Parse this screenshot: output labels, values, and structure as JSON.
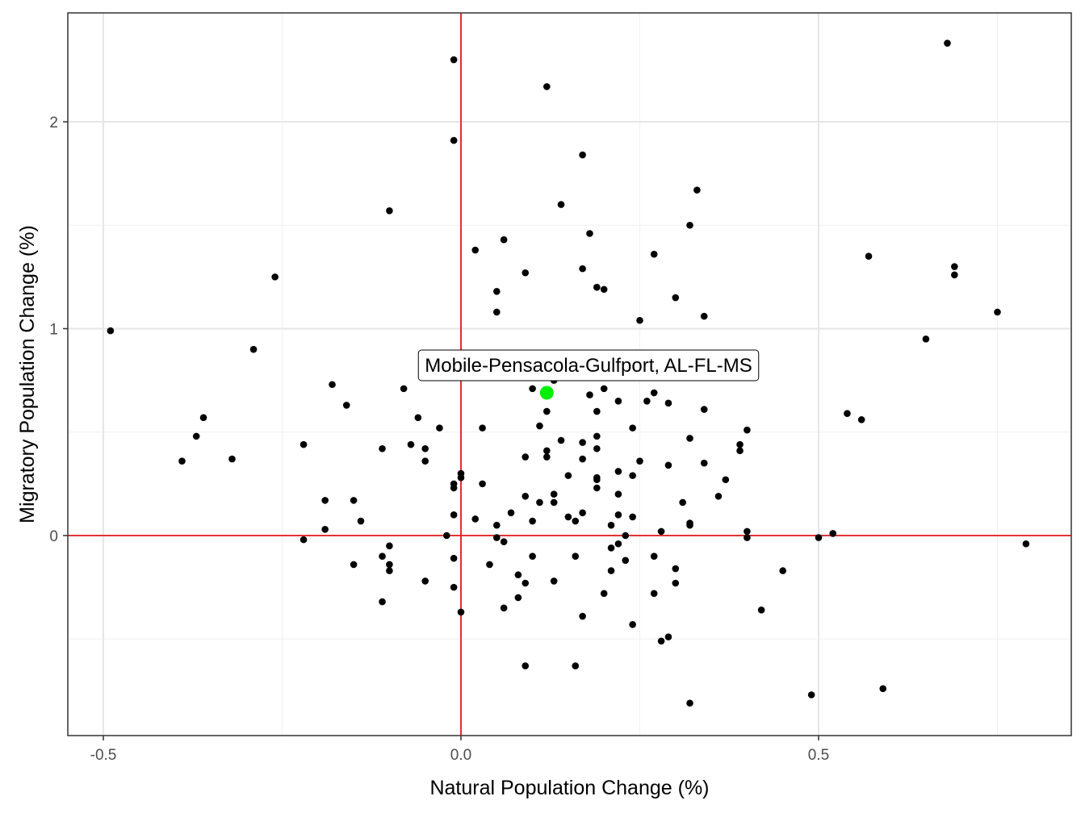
{
  "chart_data": {
    "type": "scatter",
    "title": "",
    "xlabel": "Natural Population Change (%)",
    "ylabel": "Migratory Population Change (%)",
    "xlim": [
      -0.5,
      0.8
    ],
    "ylim": [
      -0.9,
      2.4
    ],
    "x_ticks": [
      -0.5,
      0.0,
      0.5
    ],
    "x_tick_labels": [
      "-0.5",
      "0.0",
      "0.5"
    ],
    "y_ticks": [
      0,
      1,
      2
    ],
    "y_tick_labels": [
      "0",
      "1",
      "2"
    ],
    "x_minor": [
      -0.25,
      0.25,
      0.75
    ],
    "y_minor": [
      -0.5,
      0.5,
      1.5
    ],
    "grid": true,
    "reference_lines": {
      "x": 0,
      "y": 0,
      "color": "#e31a1c"
    },
    "point_color": "#000000",
    "highlight_color": "#00ee00",
    "highlight": {
      "label": "Mobile-Pensacola-Gulfport, AL-FL-MS",
      "x": 0.12,
      "y": 0.69
    },
    "points": [
      [
        -0.49,
        0.99
      ],
      [
        -0.39,
        0.36
      ],
      [
        -0.37,
        0.48
      ],
      [
        -0.36,
        0.57
      ],
      [
        -0.32,
        0.37
      ],
      [
        -0.29,
        0.9
      ],
      [
        -0.26,
        1.25
      ],
      [
        -0.22,
        0.44
      ],
      [
        -0.22,
        -0.02
      ],
      [
        -0.19,
        0.17
      ],
      [
        -0.19,
        0.03
      ],
      [
        -0.18,
        0.73
      ],
      [
        -0.16,
        0.63
      ],
      [
        -0.15,
        0.17
      ],
      [
        -0.15,
        -0.14
      ],
      [
        -0.14,
        0.07
      ],
      [
        -0.11,
        0.42
      ],
      [
        -0.11,
        -0.1
      ],
      [
        -0.11,
        -0.32
      ],
      [
        -0.1,
        1.57
      ],
      [
        -0.1,
        -0.05
      ],
      [
        -0.1,
        -0.14
      ],
      [
        -0.1,
        -0.17
      ],
      [
        -0.08,
        0.71
      ],
      [
        -0.07,
        0.44
      ],
      [
        -0.06,
        0.57
      ],
      [
        -0.05,
        0.42
      ],
      [
        -0.05,
        0.36
      ],
      [
        -0.05,
        -0.22
      ],
      [
        -0.03,
        0.52
      ],
      [
        -0.02,
        0.0
      ],
      [
        -0.01,
        2.3
      ],
      [
        -0.01,
        1.91
      ],
      [
        -0.01,
        0.25
      ],
      [
        -0.01,
        0.23
      ],
      [
        -0.01,
        0.1
      ],
      [
        -0.01,
        -0.11
      ],
      [
        -0.01,
        -0.25
      ],
      [
        0.0,
        0.3
      ],
      [
        0.0,
        0.28
      ],
      [
        0.0,
        -0.37
      ],
      [
        0.02,
        1.38
      ],
      [
        0.02,
        0.08
      ],
      [
        0.03,
        0.52
      ],
      [
        0.03,
        0.25
      ],
      [
        0.04,
        -0.14
      ],
      [
        0.05,
        1.18
      ],
      [
        0.05,
        1.08
      ],
      [
        0.05,
        0.05
      ],
      [
        0.05,
        -0.01
      ],
      [
        0.06,
        1.43
      ],
      [
        0.06,
        -0.03
      ],
      [
        0.06,
        -0.35
      ],
      [
        0.07,
        0.11
      ],
      [
        0.08,
        -0.19
      ],
      [
        0.08,
        -0.3
      ],
      [
        0.09,
        1.27
      ],
      [
        0.09,
        0.38
      ],
      [
        0.09,
        0.19
      ],
      [
        0.09,
        -0.23
      ],
      [
        0.09,
        -0.63
      ],
      [
        0.1,
        0.71
      ],
      [
        0.1,
        0.07
      ],
      [
        0.1,
        -0.1
      ],
      [
        0.11,
        0.53
      ],
      [
        0.11,
        0.16
      ],
      [
        0.12,
        2.17
      ],
      [
        0.12,
        0.6
      ],
      [
        0.12,
        0.41
      ],
      [
        0.12,
        0.38
      ],
      [
        0.13,
        0.75
      ],
      [
        0.13,
        0.2
      ],
      [
        0.13,
        0.16
      ],
      [
        0.13,
        -0.22
      ],
      [
        0.14,
        1.6
      ],
      [
        0.14,
        0.46
      ],
      [
        0.15,
        0.29
      ],
      [
        0.15,
        0.09
      ],
      [
        0.16,
        0.07
      ],
      [
        0.16,
        -0.1
      ],
      [
        0.16,
        -0.63
      ],
      [
        0.17,
        1.84
      ],
      [
        0.17,
        1.29
      ],
      [
        0.17,
        0.45
      ],
      [
        0.17,
        0.37
      ],
      [
        0.17,
        0.11
      ],
      [
        0.17,
        -0.39
      ],
      [
        0.18,
        1.46
      ],
      [
        0.18,
        0.68
      ],
      [
        0.19,
        1.2
      ],
      [
        0.19,
        0.6
      ],
      [
        0.19,
        0.48
      ],
      [
        0.19,
        0.42
      ],
      [
        0.19,
        0.28
      ],
      [
        0.19,
        0.27
      ],
      [
        0.19,
        0.23
      ],
      [
        0.2,
        1.19
      ],
      [
        0.2,
        0.71
      ],
      [
        0.2,
        -0.28
      ],
      [
        0.21,
        0.05
      ],
      [
        0.21,
        -0.06
      ],
      [
        0.21,
        -0.17
      ],
      [
        0.22,
        0.65
      ],
      [
        0.22,
        0.31
      ],
      [
        0.22,
        0.2
      ],
      [
        0.22,
        0.1
      ],
      [
        0.22,
        -0.04
      ],
      [
        0.23,
        0.0
      ],
      [
        0.23,
        -0.12
      ],
      [
        0.24,
        0.52
      ],
      [
        0.24,
        0.29
      ],
      [
        0.24,
        0.09
      ],
      [
        0.24,
        -0.43
      ],
      [
        0.25,
        1.04
      ],
      [
        0.25,
        0.36
      ],
      [
        0.26,
        0.65
      ],
      [
        0.27,
        1.36
      ],
      [
        0.27,
        0.69
      ],
      [
        0.27,
        -0.1
      ],
      [
        0.27,
        -0.28
      ],
      [
        0.28,
        0.02
      ],
      [
        0.28,
        -0.51
      ],
      [
        0.29,
        0.64
      ],
      [
        0.29,
        0.34
      ],
      [
        0.29,
        -0.49
      ],
      [
        0.3,
        1.15
      ],
      [
        0.3,
        -0.16
      ],
      [
        0.3,
        -0.23
      ],
      [
        0.31,
        0.16
      ],
      [
        0.32,
        1.5
      ],
      [
        0.32,
        0.47
      ],
      [
        0.32,
        0.06
      ],
      [
        0.32,
        0.05
      ],
      [
        0.32,
        -0.81
      ],
      [
        0.33,
        1.67
      ],
      [
        0.34,
        1.06
      ],
      [
        0.34,
        0.61
      ],
      [
        0.34,
        0.35
      ],
      [
        0.36,
        0.19
      ],
      [
        0.37,
        0.27
      ],
      [
        0.39,
        0.44
      ],
      [
        0.39,
        0.41
      ],
      [
        0.4,
        0.51
      ],
      [
        0.4,
        0.02
      ],
      [
        0.4,
        -0.01
      ],
      [
        0.42,
        -0.36
      ],
      [
        0.45,
        -0.17
      ],
      [
        0.49,
        -0.77
      ],
      [
        0.5,
        -0.01
      ],
      [
        0.52,
        0.01
      ],
      [
        0.54,
        0.59
      ],
      [
        0.56,
        0.56
      ],
      [
        0.57,
        1.35
      ],
      [
        0.59,
        -0.74
      ],
      [
        0.65,
        0.95
      ],
      [
        0.68,
        2.38
      ],
      [
        0.69,
        1.3
      ],
      [
        0.69,
        1.26
      ],
      [
        0.75,
        1.08
      ],
      [
        0.79,
        -0.04
      ]
    ]
  }
}
